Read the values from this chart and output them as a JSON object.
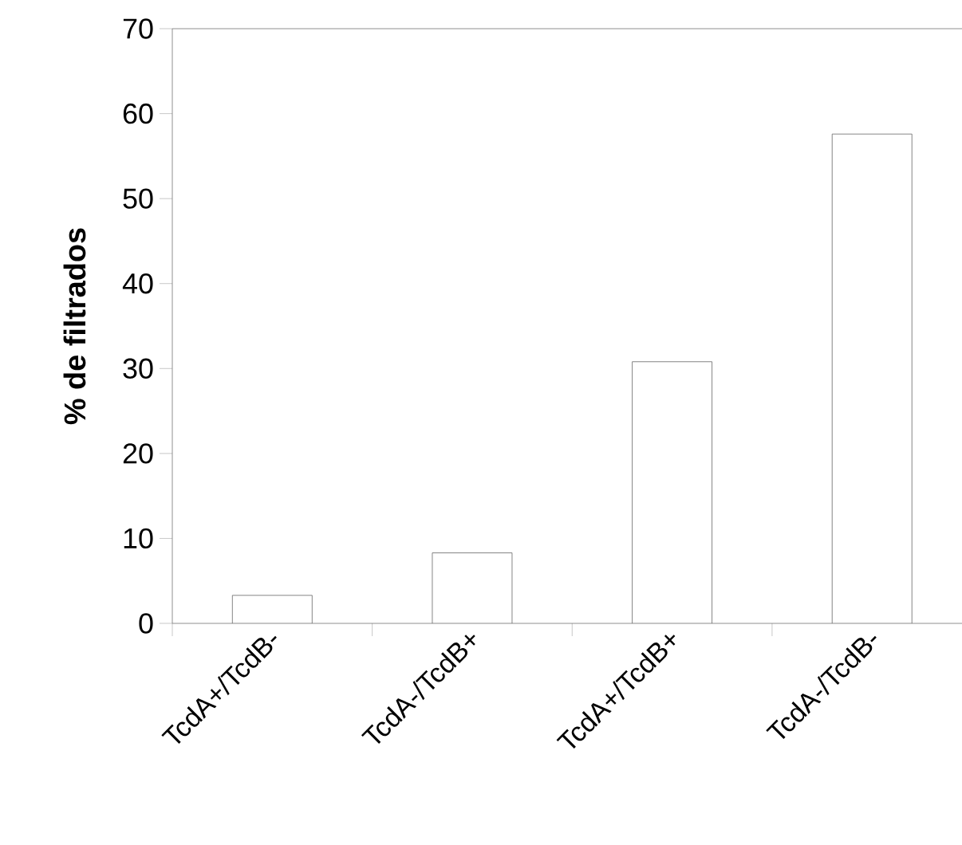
{
  "chart_data": {
    "type": "bar",
    "ylabel": "% de filtrados",
    "categories": [
      "TcdA+/TcdB-",
      "TcdA-/TcdB+",
      "TcdA+/TcdB+",
      "TcdA-/TcdB-"
    ],
    "values": [
      3.3,
      8.3,
      30.8,
      57.6
    ],
    "color": "#ffffff",
    "ylim": [
      0,
      70
    ],
    "yticks": [
      0,
      10,
      20,
      30,
      40,
      50,
      60,
      70
    ]
  }
}
